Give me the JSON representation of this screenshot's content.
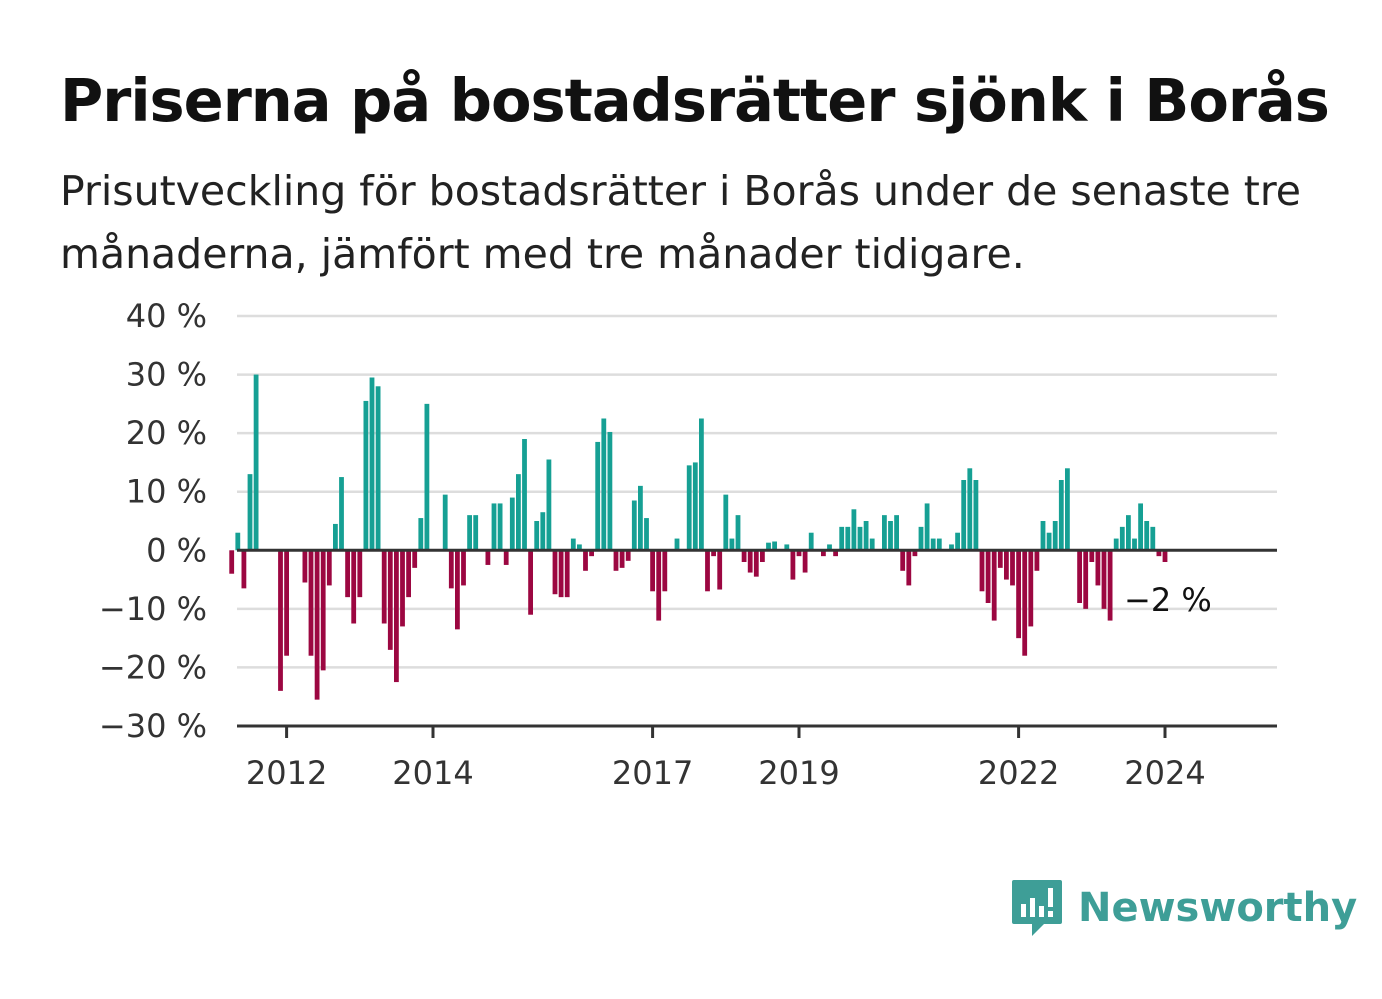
{
  "header": {
    "title": "Priserna på bostadsrätter sjönk i Borås",
    "subtitle": "Prisutveckling för bostadsrätter i Borås under de senaste tre månaderna, jämfört med tre månader tidigare."
  },
  "brand": {
    "name": "Newsworthy",
    "color": "#3e9e97",
    "icon": "newsworthy-logo-icon"
  },
  "colors": {
    "positive": "#16a094",
    "negative": "#9c0741",
    "grid": "#dddddd",
    "axis": "#333333"
  },
  "chart_data": {
    "type": "bar",
    "ylim": [
      -30,
      40
    ],
    "yticks": [
      40,
      30,
      20,
      10,
      0,
      -10,
      -20,
      -30
    ],
    "ytick_labels": [
      "40 %",
      "30 %",
      "20 %",
      "10 %",
      "0 %",
      "−10 %",
      "−20 %",
      "−30 %"
    ],
    "xticks": [
      2012,
      2014,
      2017,
      2019,
      2022,
      2024
    ],
    "xtick_labels": [
      "2012",
      "2014",
      "2017",
      "2019",
      "2022",
      "2024"
    ],
    "x_start": "2011-04",
    "grid": true,
    "annotation": {
      "text": "−2 %",
      "value": -2
    },
    "values": [
      -4,
      3,
      -6.5,
      13,
      30,
      0,
      0,
      0,
      -24,
      -18,
      0,
      0,
      -5.5,
      -18,
      -25.5,
      -20.5,
      -6,
      4.5,
      12.5,
      -8,
      -12.5,
      -8,
      25.5,
      29.5,
      28,
      -12.5,
      -17,
      -22.5,
      -13,
      -8,
      -3,
      5.5,
      25,
      0,
      0,
      9.5,
      -6.5,
      -13.5,
      -6,
      6,
      6,
      0,
      -2.5,
      8,
      8,
      -2.5,
      9,
      13,
      19,
      -11,
      5,
      6.5,
      15.5,
      -7.5,
      -8,
      -8,
      2,
      1,
      -3.5,
      -1,
      18.5,
      22.5,
      20.2,
      -3.5,
      -3,
      -1.8,
      8.5,
      11,
      5.5,
      -7,
      -12,
      -7,
      0,
      2,
      0,
      14.5,
      15,
      22.5,
      -7,
      -1,
      -6.7,
      9.5,
      2,
      6,
      -2,
      -3.8,
      -4.5,
      -2,
      1.3,
      1.5,
      0,
      1,
      -5,
      -1,
      -3.8,
      3,
      0,
      -1,
      1,
      -1,
      4,
      4,
      7,
      4,
      5,
      2,
      0,
      6,
      5,
      6,
      -3.5,
      -6,
      -1,
      4,
      8,
      2,
      2,
      0,
      1,
      3,
      12,
      14,
      12,
      -7,
      -9,
      -12,
      -3,
      -5,
      -6,
      -15,
      -18,
      -13,
      -3.5,
      5,
      3,
      5,
      12,
      14,
      0,
      -9,
      -10,
      -2,
      -6,
      -10,
      -12,
      2,
      4,
      6,
      2,
      8,
      5,
      4,
      -1,
      -2
    ]
  }
}
